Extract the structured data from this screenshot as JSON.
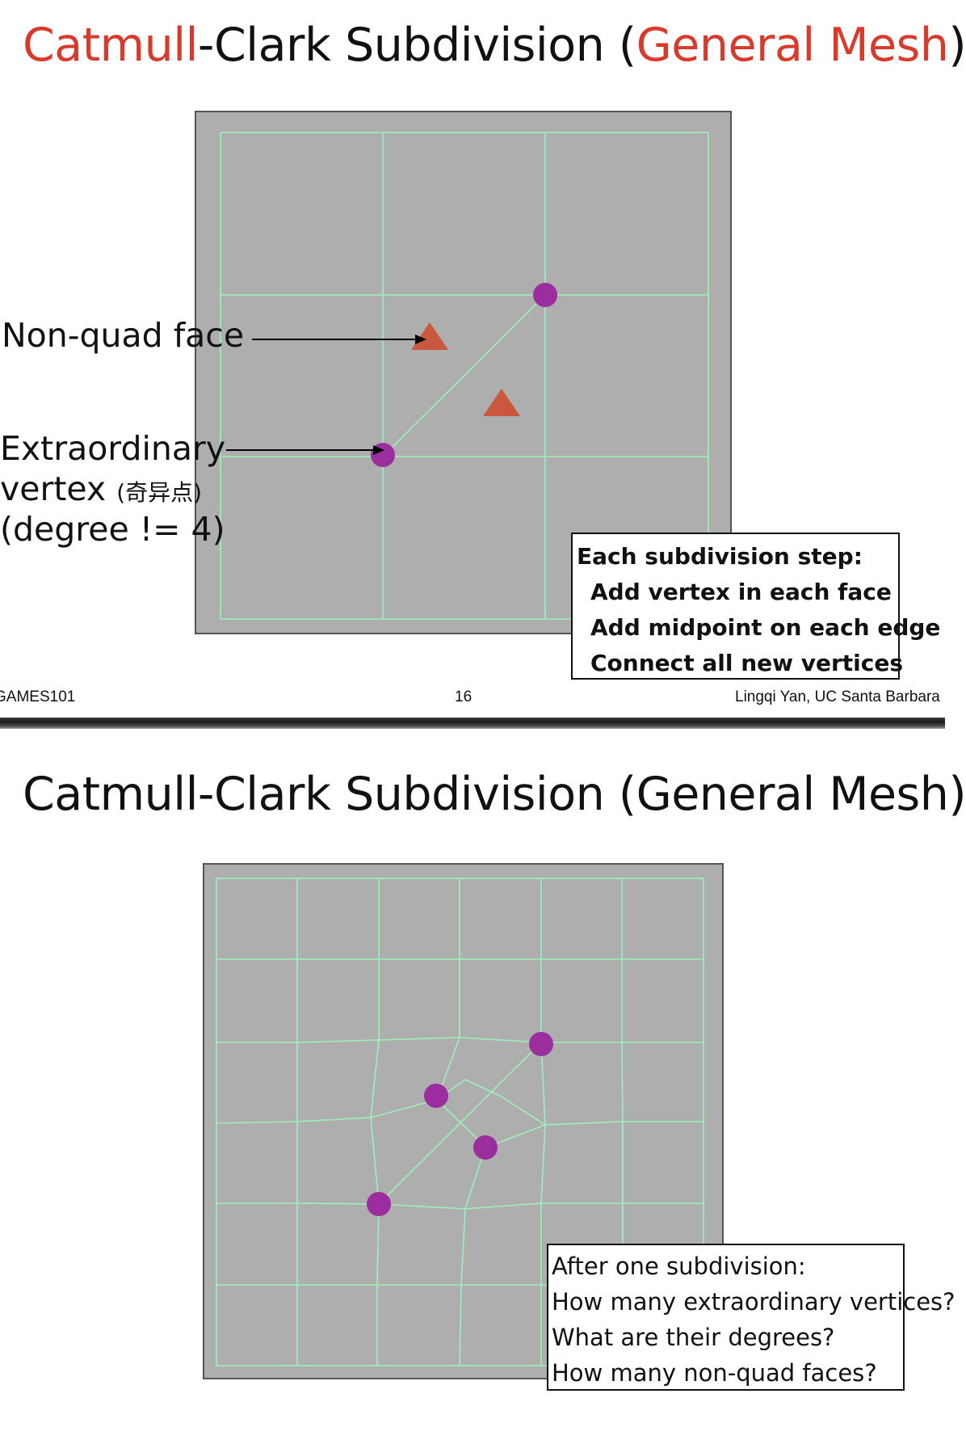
{
  "slide1": {
    "title_catmull": "Catmull",
    "title_clark": "-Clark Subdivision (",
    "title_general_mesh": "General Mesh",
    "title_close": ")",
    "label_nonquad": "Non-quad face",
    "label_extra_1": "Extraordinary",
    "label_extra_2": "vertex",
    "label_extra_cn": "(奇异点)",
    "label_extra_3": "(degree != 4)",
    "box_lines": [
      "Each subdivision step:",
      "Add vertex in each face",
      "Add midpoint on each edge",
      "Connect all new vertices"
    ],
    "footer_left": "GAMES101",
    "footer_page": "16",
    "footer_right": "Lingqi Yan, UC Santa Barbara"
  },
  "slide2": {
    "title": "Catmull-Clark Subdivision (General Mesh)",
    "box_lines": [
      "After one subdivision:",
      "How many extraordinary vertices?",
      "What are their degrees?",
      "How many non-quad faces?"
    ]
  },
  "colors": {
    "accent_red": "#d83a2c",
    "mesh_bg": "#aeaeae",
    "mesh_line": "#9ef0b8",
    "vertex_purple": "#9b2d9f",
    "triangle_fill": "#c9583f"
  }
}
